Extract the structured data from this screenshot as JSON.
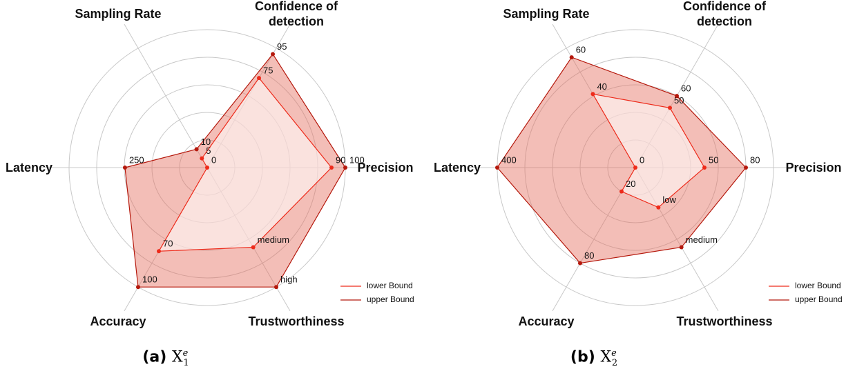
{
  "chart_data": [
    {
      "type": "radar",
      "axes": [
        {
          "name": "Precision",
          "rlim": [
            0,
            100
          ]
        },
        {
          "name": "Confidence of detection",
          "rlim": [
            0,
            100
          ]
        },
        {
          "name": "Sampling Rate",
          "rlim": [
            0,
            65
          ]
        },
        {
          "name": "Latency",
          "rlim": [
            0,
            420
          ]
        },
        {
          "name": "Accuracy",
          "rlim": [
            0,
            100
          ]
        },
        {
          "name": "Trustworthiness",
          "rlim": [
            0,
            3
          ]
        }
      ],
      "series": [
        {
          "name": "lower Bound",
          "color": "#ee2a1a",
          "values": [
            90,
            75,
            5,
            0,
            70,
            2
          ],
          "value_labels": [
            "90",
            "75",
            "5",
            "0",
            "70",
            "medium"
          ]
        },
        {
          "name": "upper Bound",
          "color": "#b5180c",
          "values": [
            100,
            95,
            10,
            250,
            100,
            3
          ],
          "value_labels": [
            "100",
            "95",
            "10",
            "250",
            "100",
            "high"
          ]
        }
      ],
      "caption": {
        "label": "(a)",
        "symbol": "X",
        "subscript": "1",
        "superscript": "e"
      }
    },
    {
      "type": "radar",
      "axes": [
        {
          "name": "Precision",
          "rlim": [
            0,
            100
          ]
        },
        {
          "name": "Confidence of detection",
          "rlim": [
            0,
            100
          ]
        },
        {
          "name": "Sampling Rate",
          "rlim": [
            0,
            65
          ]
        },
        {
          "name": "Latency",
          "rlim": [
            0,
            400
          ]
        },
        {
          "name": "Accuracy",
          "rlim": [
            0,
            100
          ]
        },
        {
          "name": "Trustworthiness",
          "rlim": [
            0,
            3
          ]
        }
      ],
      "series": [
        {
          "name": "lower Bound",
          "color": "#ee2a1a",
          "values": [
            50,
            50,
            40,
            0,
            20,
            1
          ],
          "value_labels": [
            "50",
            "50",
            "40",
            "0",
            "20",
            "low"
          ]
        },
        {
          "name": "upper Bound",
          "color": "#b5180c",
          "values": [
            80,
            60,
            60,
            400,
            80,
            2
          ],
          "value_labels": [
            "80",
            "60",
            "60",
            "400",
            "80",
            "medium"
          ]
        }
      ],
      "caption": {
        "label": "(b)",
        "symbol": "X",
        "subscript": "2",
        "superscript": "e"
      }
    }
  ]
}
